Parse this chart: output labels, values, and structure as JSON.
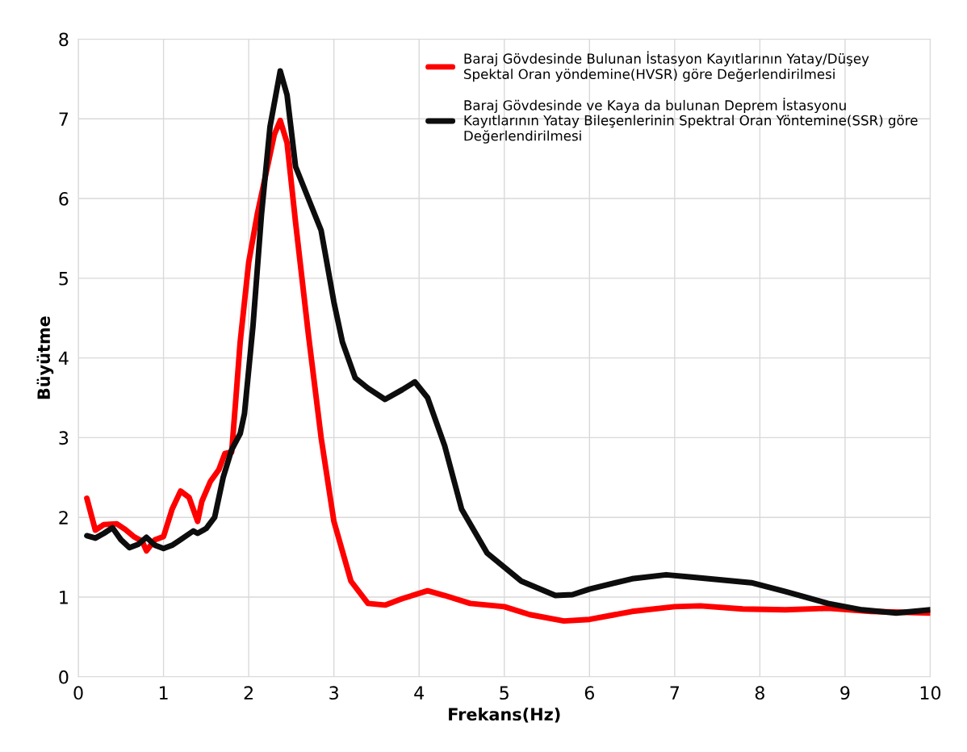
{
  "chart_data": {
    "type": "line",
    "xlabel": "Frekans(Hz)",
    "ylabel": "Büyütme",
    "xlim": [
      0,
      10
    ],
    "xticks": [
      0,
      1,
      2,
      3,
      4,
      5,
      6,
      7,
      8,
      9,
      10
    ],
    "ylim": [
      0,
      8
    ],
    "yticks": [
      0,
      1,
      2,
      3,
      4,
      5,
      6,
      7,
      8
    ],
    "grid": true,
    "legend": "top right",
    "marker": "none",
    "line_style": "solid",
    "series": [
      {
        "name": "Baraj Gövdesinde Bulunan İstasyon Kayıtlarının Yatay/Düşey\nSpektal Oran yöndemine(HVSR) göre Değerlendirilmesi",
        "color": "#ff0000",
        "x": [
          0.1,
          0.2,
          0.3,
          0.45,
          0.55,
          0.65,
          0.75,
          0.8,
          0.9,
          1.0,
          1.1,
          1.2,
          1.3,
          1.4,
          1.45,
          1.55,
          1.65,
          1.72,
          1.8,
          1.85,
          1.9,
          2.0,
          2.1,
          2.2,
          2.3,
          2.37,
          2.45,
          2.55,
          2.7,
          2.85,
          3.0,
          3.2,
          3.4,
          3.6,
          3.8,
          4.1,
          4.3,
          4.6,
          5.0,
          5.3,
          5.7,
          6.0,
          6.5,
          7.0,
          7.3,
          7.8,
          8.3,
          8.8,
          9.3,
          10
        ],
        "values": [
          2.24,
          1.84,
          1.91,
          1.92,
          1.85,
          1.76,
          1.7,
          1.58,
          1.72,
          1.76,
          2.1,
          2.33,
          2.25,
          1.95,
          2.2,
          2.45,
          2.6,
          2.8,
          2.82,
          3.5,
          4.2,
          5.2,
          5.8,
          6.3,
          6.8,
          6.98,
          6.7,
          5.7,
          4.3,
          3.0,
          1.95,
          1.2,
          0.92,
          0.9,
          0.98,
          1.08,
          1.02,
          0.92,
          0.88,
          0.78,
          0.7,
          0.72,
          0.82,
          0.88,
          0.89,
          0.85,
          0.84,
          0.86,
          0.82,
          0.8
        ]
      },
      {
        "name": "Baraj Gövdesinde ve Kaya da bulunan Deprem İstasyonu\nKayıtlarının Yatay Bileşenlerinin Spektral Oran Yöntemine(SSR) göre\nDeğerlendirilmesi",
        "color": "#0d0d0d",
        "x": [
          0.1,
          0.2,
          0.3,
          0.4,
          0.5,
          0.6,
          0.7,
          0.8,
          0.9,
          1.0,
          1.1,
          1.2,
          1.35,
          1.4,
          1.5,
          1.6,
          1.7,
          1.8,
          1.9,
          1.95,
          2.05,
          2.15,
          2.25,
          2.37,
          2.45,
          2.55,
          2.7,
          2.85,
          3.0,
          3.1,
          3.25,
          3.4,
          3.6,
          3.8,
          3.95,
          4.1,
          4.3,
          4.5,
          4.8,
          5.2,
          5.6,
          5.8,
          6.0,
          6.5,
          6.9,
          7.2,
          7.9,
          8.3,
          8.8,
          9.2,
          9.6,
          10
        ],
        "values": [
          1.77,
          1.74,
          1.8,
          1.87,
          1.72,
          1.62,
          1.66,
          1.75,
          1.65,
          1.61,
          1.65,
          1.72,
          1.83,
          1.8,
          1.86,
          2.0,
          2.5,
          2.85,
          3.05,
          3.3,
          4.4,
          5.8,
          6.9,
          7.6,
          7.3,
          6.4,
          6.0,
          5.6,
          4.7,
          4.2,
          3.75,
          3.62,
          3.48,
          3.6,
          3.7,
          3.5,
          2.9,
          2.1,
          1.55,
          1.2,
          1.02,
          1.03,
          1.1,
          1.23,
          1.28,
          1.25,
          1.18,
          1.07,
          0.92,
          0.84,
          0.8,
          0.84
        ]
      }
    ]
  }
}
